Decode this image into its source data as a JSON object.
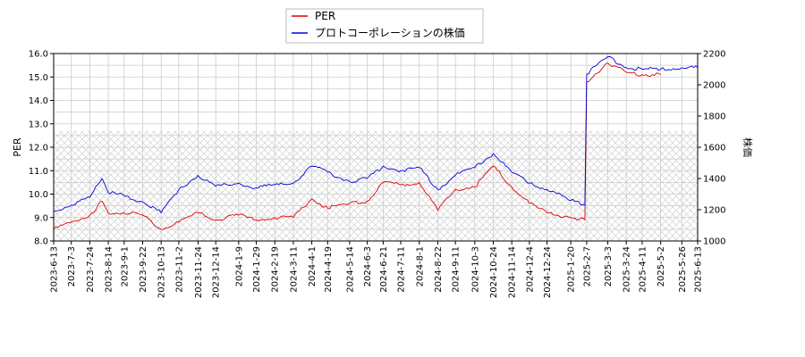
{
  "chart_data": {
    "type": "line",
    "title": "",
    "xlabel": "",
    "ylabel_left": "PER",
    "ylabel_right": "株価",
    "ylim_left": [
      8.0,
      16.0
    ],
    "ylim_right": [
      1000,
      2200
    ],
    "yticks_left": [
      "8.0",
      "9.0",
      "10.0",
      "11.0",
      "12.0",
      "13.0",
      "14.0",
      "15.0",
      "16.0"
    ],
    "yticks_right": [
      "1000",
      "1200",
      "1400",
      "1600",
      "1800",
      "2000",
      "2200"
    ],
    "x_ticks": [
      "2023-6-13",
      "2023-7-3",
      "2023-7-24",
      "2023-8-14",
      "2023-9-1",
      "2023-9-22",
      "2023-10-13",
      "2023-11-2",
      "2023-11-24",
      "2023-12-14",
      "2024-1-9",
      "2024-1-29",
      "2024-2-19",
      "2024-3-11",
      "2024-4-1",
      "2024-4-19",
      "2024-5-14",
      "2024-6-3",
      "2024-6-21",
      "2024-7-11",
      "2024-8-1",
      "2024-8-22",
      "2024-9-11",
      "2024-10-3",
      "2024-10-24",
      "2024-11-14",
      "2024-12-4",
      "2024-12-24",
      "2025-1-20",
      "2025-2-7",
      "2025-3-3",
      "2025-3-24",
      "2025-4-11",
      "2025-5-2",
      "2025-5-26",
      "2025-6-13"
    ],
    "grid": true,
    "legend_position": "top-center",
    "hatched_band_left_units": [
      8.0,
      12.7
    ],
    "series": [
      {
        "name": "PER",
        "axis": "left",
        "color": "#dd0000",
        "x": [
          "2023-6-13",
          "2023-7-3",
          "2023-7-24",
          "2023-8-7",
          "2023-8-14",
          "2023-9-1",
          "2023-9-22",
          "2023-10-13",
          "2023-11-2",
          "2023-11-24",
          "2023-12-14",
          "2024-1-9",
          "2024-1-29",
          "2024-2-19",
          "2024-3-11",
          "2024-4-1",
          "2024-4-19",
          "2024-5-14",
          "2024-6-3",
          "2024-6-21",
          "2024-7-11",
          "2024-8-1",
          "2024-8-22",
          "2024-9-11",
          "2024-10-3",
          "2024-10-24",
          "2024-11-14",
          "2024-12-4",
          "2024-12-24",
          "2025-1-20",
          "2025-2-5",
          "2025-2-7",
          "2025-3-3",
          "2025-3-24",
          "2025-4-11",
          "2025-5-2"
        ],
        "y": [
          8.5,
          8.8,
          9.1,
          9.7,
          9.2,
          9.2,
          9.1,
          8.5,
          8.8,
          9.2,
          8.9,
          9.1,
          8.9,
          9.0,
          9.0,
          9.8,
          9.4,
          9.6,
          9.7,
          10.5,
          10.4,
          10.5,
          9.3,
          10.2,
          10.3,
          11.2,
          10.3,
          9.6,
          9.2,
          9.0,
          8.9,
          14.8,
          15.6,
          15.2,
          15.1,
          15.1
        ]
      },
      {
        "name": "プロトコーポレーションの株価",
        "axis": "right",
        "color": "#0000dd",
        "x": [
          "2023-6-13",
          "2023-7-3",
          "2023-7-24",
          "2023-8-7",
          "2023-8-14",
          "2023-9-1",
          "2023-9-22",
          "2023-10-13",
          "2023-11-2",
          "2023-11-24",
          "2023-12-14",
          "2024-1-9",
          "2024-1-29",
          "2024-2-19",
          "2024-3-11",
          "2024-4-1",
          "2024-4-19",
          "2024-5-14",
          "2024-6-3",
          "2024-6-21",
          "2024-7-11",
          "2024-8-1",
          "2024-8-22",
          "2024-9-11",
          "2024-10-3",
          "2024-10-24",
          "2024-11-14",
          "2024-12-4",
          "2024-12-24",
          "2025-1-20",
          "2025-2-5",
          "2025-2-7",
          "2025-3-3",
          "2025-3-24",
          "2025-4-11",
          "2025-5-2",
          "2025-5-26",
          "2025-6-13"
        ],
        "y": [
          1190,
          1230,
          1280,
          1400,
          1310,
          1290,
          1250,
          1180,
          1330,
          1420,
          1350,
          1370,
          1340,
          1360,
          1370,
          1480,
          1440,
          1380,
          1400,
          1480,
          1450,
          1470,
          1330,
          1420,
          1470,
          1560,
          1440,
          1370,
          1330,
          1260,
          1230,
          2070,
          2180,
          2110,
          2100,
          2100,
          2110,
          2110
        ]
      }
    ]
  }
}
